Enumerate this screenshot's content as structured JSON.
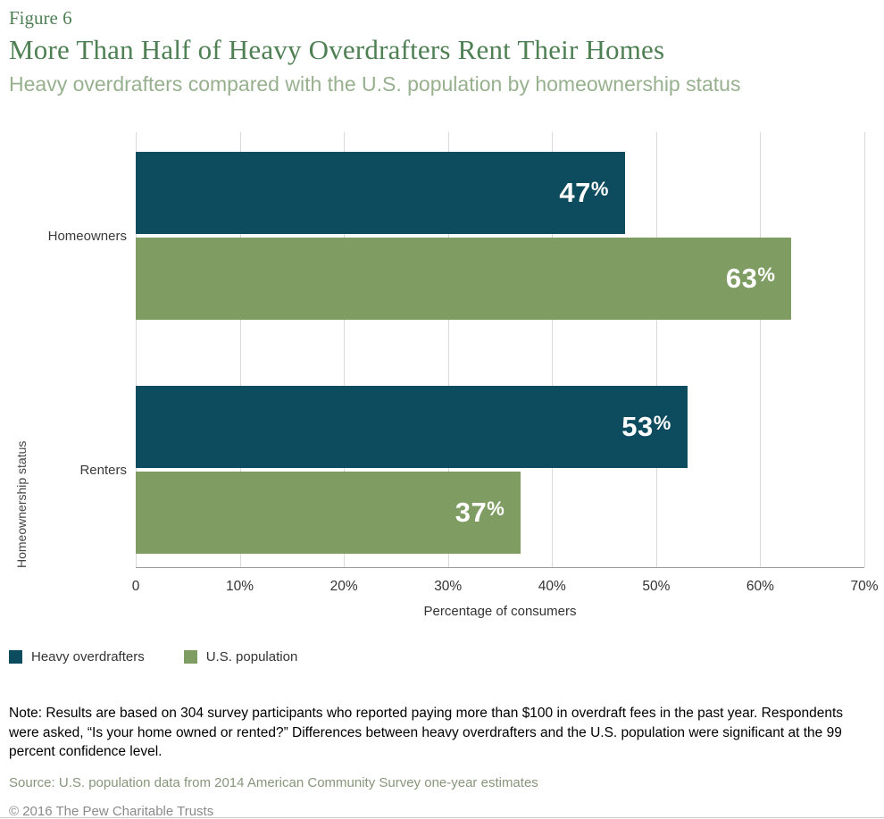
{
  "figure_label": "Figure 6",
  "title": "More Than Half of Heavy Overdrafters Rent Their Homes",
  "subtitle": "Heavy overdrafters compared with the U.S. population by homeownership status",
  "chart_data": {
    "type": "bar",
    "orientation": "horizontal",
    "title": "More Than Half of Heavy Overdrafters Rent Their Homes",
    "categories": [
      "Homeowners",
      "Renters"
    ],
    "series": [
      {
        "name": "Heavy overdrafters",
        "color": "#0d4b5e",
        "values": [
          47,
          53
        ]
      },
      {
        "name": "U.S. population",
        "color": "#7f9d63",
        "values": [
          63,
          37
        ]
      }
    ],
    "value_suffix": "%",
    "xlabel": "Percentage of consumers",
    "ylabel": "Homeownership status",
    "xlim": [
      0,
      70
    ],
    "xticks": [
      0,
      10,
      20,
      30,
      40,
      50,
      60,
      70
    ],
    "xtick_labels": [
      "0",
      "10%",
      "20%",
      "30%",
      "40%",
      "50%",
      "60%",
      "70%"
    ],
    "grid": "vertical",
    "legend_position": "bottom-left"
  },
  "legend": [
    {
      "label": "Heavy overdrafters",
      "color": "#0d4b5e"
    },
    {
      "label": "U.S. population",
      "color": "#7f9d63"
    }
  ],
  "note": "Note: Results are based on 304 survey participants who reported paying more than $100 in overdraft fees in the past year. Respondents were asked, “Is your home owned or rented?” Differences between heavy overdrafters and the U.S. population were significant at the 99 percent confidence level.",
  "source": "Source: U.S. population data from 2014 American Community Survey one-year estimates",
  "copyright": "© 2016 The Pew Charitable Trusts",
  "colors": {
    "title_green": "#4e8054",
    "subtitle_green": "#97b08e",
    "dark_teal": "#0d4b5e",
    "olive_green": "#7f9d63",
    "gridline": "#d9d9d9"
  }
}
